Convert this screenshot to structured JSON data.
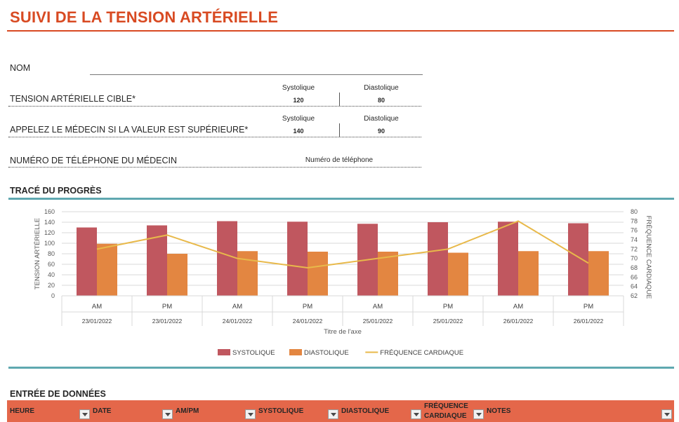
{
  "page": {
    "title": "SUIVI DE LA TENSION ARTÉRIELLE"
  },
  "form": {
    "name_label": "NOM",
    "target_label": "TENSION ARTÉRIELLE CIBLE*",
    "target_systolic_header": "Systolique",
    "target_diastolic_header": "Diastolique",
    "target_systolic_value": "120",
    "target_diastolic_value": "80",
    "call_label": "APPELEZ LE MÉDECIN SI LA VALEUR EST SUPÉRIEURE*",
    "call_systolic_header": "Systolique",
    "call_diastolic_header": "Diastolique",
    "call_systolic_value": "140",
    "call_diastolic_value": "90",
    "phone_label": "NUMÉRO DE TÉLÉPHONE DU MÉDECIN",
    "phone_value": "Numéro de téléphone"
  },
  "progress_section": {
    "title": "TRACÉ DU PROGRÈS"
  },
  "chart_data": {
    "type": "bar",
    "categories": [
      "AM",
      "PM",
      "AM",
      "PM",
      "AM",
      "PM",
      "AM",
      "PM"
    ],
    "dates": [
      "23/01/2022",
      "23/01/2022",
      "24/01/2022",
      "24/01/2022",
      "25/01/2022",
      "25/01/2022",
      "26/01/2022",
      "26/01/2022"
    ],
    "series": [
      {
        "name": "SYSTOLIQUE",
        "type": "bar",
        "axis": "left",
        "color": "#c0575f",
        "values": [
          130,
          134,
          142,
          141,
          137,
          140,
          141,
          138
        ]
      },
      {
        "name": "DIASTOLIQUE",
        "type": "bar",
        "axis": "left",
        "color": "#e38641",
        "values": [
          99,
          80,
          85,
          84,
          84,
          82,
          85,
          85
        ]
      },
      {
        "name": "FRÉQUENCE CARDIAQUE",
        "type": "line",
        "axis": "right",
        "color": "#e8b94a",
        "values": [
          72,
          75,
          70,
          68,
          70,
          72,
          78,
          69
        ]
      }
    ],
    "ylabel": "TENSION ARTÉRIELLE",
    "y2label": "FRÉQUENCE CARDIAQUE",
    "xlabel": "Titre de l'axe",
    "ylim": [
      0,
      160
    ],
    "yticks": [
      "0",
      "20",
      "40",
      "60",
      "80",
      "100",
      "120",
      "140",
      "160"
    ],
    "y2lim": [
      62,
      80
    ],
    "y2ticks": [
      "62",
      "64",
      "66",
      "68",
      "70",
      "72",
      "74",
      "76",
      "78",
      "80"
    ],
    "grid": true,
    "legend_position": "bottom"
  },
  "data_entry": {
    "title": "ENTRÉE DE DONNÉES",
    "columns": {
      "heure": "HEURE",
      "date": "DATE",
      "ampm": "AM/PM",
      "systolique": "SYSTOLIQUE",
      "diastolique": "DIASTOLIQUE",
      "frequence_1": "FRÉQUENCE",
      "frequence_2": "CARDIAQUE",
      "notes": "NOTES"
    },
    "header_color": "#e4674a"
  }
}
